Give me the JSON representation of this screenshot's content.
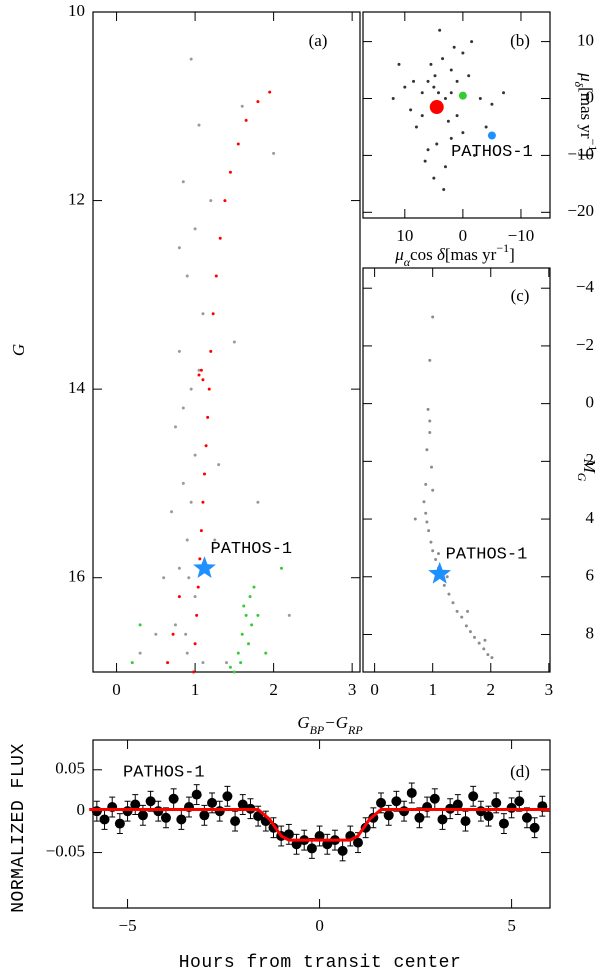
{
  "chart_data": [
    {
      "type": "scatter",
      "panel_label": "(a)",
      "annotation": "PATHOS-1",
      "xlabel": [
        "G",
        "BP",
        "−G",
        "RP"
      ],
      "xlabel_style": [
        "italic",
        "sub",
        "italic",
        "sub"
      ],
      "ylabel": [
        "G"
      ],
      "ylabel_style": [
        "italic"
      ],
      "yaxis": "left",
      "xlim": [
        -0.3,
        3.1
      ],
      "ylim": [
        17,
        10
      ],
      "xticks": [
        0,
        1,
        2,
        3
      ],
      "yticks": [
        10,
        12,
        14,
        16
      ],
      "series": [
        {
          "color": "#9a9a9a",
          "marker": "point",
          "x": [
            0.95,
            1.05,
            0.85,
            1.0,
            0.9,
            1.1,
            0.8,
            0.95,
            0.75,
            1.0,
            0.85,
            0.7,
            0.9,
            0.8,
            1.0,
            0.75,
            0.9,
            1.2,
            1.5,
            1.3,
            2.0,
            1.8,
            0.6,
            0.5,
            1.4,
            2.2,
            0.3,
            1.6,
            0.95,
            0.85,
            1.05,
            0.92,
            0.88,
            1.1,
            0.8,
            1.25
          ],
          "values": [
            10.5,
            11.2,
            11.8,
            12.3,
            12.8,
            13.2,
            13.6,
            14.0,
            14.4,
            14.7,
            15.0,
            15.3,
            15.6,
            15.9,
            16.2,
            16.5,
            16.8,
            12.0,
            13.5,
            14.8,
            11.5,
            15.2,
            16.0,
            16.6,
            16.9,
            16.4,
            16.8,
            11.0,
            15.2,
            14.2,
            13.8,
            16.0,
            16.6,
            16.9,
            12.5,
            15.6
          ]
        },
        {
          "color": "#ff0000",
          "marker": "point",
          "x": [
            0.98,
            1.0,
            1.02,
            1.04,
            1.06,
            1.08,
            1.1,
            1.12,
            1.14,
            1.16,
            1.18,
            1.2,
            1.23,
            1.27,
            1.32,
            1.38,
            1.45,
            1.55,
            1.65,
            1.8,
            1.95,
            1.05,
            1.08,
            1.1,
            0.72,
            0.8,
            0.65
          ],
          "values": [
            17.0,
            16.7,
            16.4,
            16.1,
            15.8,
            15.5,
            15.2,
            14.9,
            14.6,
            14.3,
            14.0,
            13.6,
            13.2,
            12.8,
            12.4,
            12.0,
            11.7,
            11.4,
            11.15,
            10.95,
            10.85,
            13.85,
            13.8,
            13.9,
            16.6,
            16.2,
            16.9
          ]
        },
        {
          "color": "#33cc33",
          "marker": "point",
          "x": [
            1.5,
            1.55,
            1.6,
            1.65,
            1.7,
            1.75,
            1.58,
            1.68,
            1.72,
            1.62,
            1.45,
            1.8,
            0.3,
            0.2,
            2.1,
            1.9
          ],
          "values": [
            17.0,
            16.8,
            16.6,
            16.4,
            16.2,
            16.1,
            16.9,
            16.7,
            16.5,
            16.3,
            16.95,
            16.4,
            16.5,
            16.9,
            15.9,
            16.8
          ]
        },
        {
          "color": "#1e90ff",
          "marker": "star",
          "x": [
            1.12
          ],
          "values": [
            15.9
          ]
        }
      ]
    },
    {
      "type": "scatter",
      "panel_label": "(b)",
      "annotation": "PATHOS-1",
      "xlabel": [
        "μ",
        "α",
        "cos ",
        "δ",
        "[mas yr",
        "−1",
        "]"
      ],
      "xlabel_style": [
        "italic",
        "sub",
        "normal",
        "italic",
        "normal",
        "sup",
        "normal"
      ],
      "ylabel": [
        "μ",
        "δ",
        "[mas yr",
        "−1",
        "]"
      ],
      "ylabel_style": [
        "italic",
        "sub",
        "normal",
        "sup",
        "normal"
      ],
      "yaxis": "right",
      "xlim": [
        17.2,
        -15
      ],
      "ylim": [
        -21,
        15.2
      ],
      "xticks": [
        10,
        0,
        {
          "value": -10,
          "label": "−10"
        }
      ],
      "yticks": [
        10,
        0,
        {
          "value": -10,
          "label": "−10"
        },
        {
          "value": -20,
          "label": "−20"
        }
      ],
      "series": [
        {
          "color": "#333333",
          "marker": "point",
          "x": [
            3,
            5,
            1,
            7,
            -1,
            4,
            2,
            8,
            -3,
            6,
            0,
            10,
            -5,
            3.5,
            4.5,
            2.5,
            5.5,
            1.5,
            9,
            -2,
            12,
            -7,
            3,
            6,
            0,
            4,
            2,
            7,
            -4,
            11,
            5,
            1,
            3.8,
            4.2,
            2,
            6.5,
            -1.5,
            8.5,
            3.3,
            4.8
          ],
          "values": [
            0,
            2,
            -3,
            1,
            4,
            -2,
            5,
            -5,
            0,
            3,
            -6,
            2,
            -1,
            7,
            -8,
            -4,
            6,
            9,
            -2,
            -10,
            0,
            1,
            -12,
            -9,
            8,
            12,
            1,
            -3,
            -5,
            6,
            -14,
            3,
            -2,
            1,
            -7,
            -11,
            10,
            3,
            -16,
            4
          ]
        },
        {
          "color": "#ff0000",
          "marker": "dot",
          "x": [
            4.5
          ],
          "values": [
            -1.5
          ]
        },
        {
          "color": "#33cc33",
          "marker": "smalldot",
          "x": [
            0
          ],
          "values": [
            0.5
          ]
        },
        {
          "color": "#1e90ff",
          "marker": "smalldot",
          "x": [
            -5
          ],
          "values": [
            -6.5
          ]
        }
      ]
    },
    {
      "type": "scatter",
      "panel_label": "(c)",
      "annotation": "PATHOS-1",
      "ylabel": [
        "M",
        "G"
      ],
      "ylabel_style": [
        "italic",
        "sub"
      ],
      "yaxis": "right",
      "xlim": [
        -0.2,
        3.02
      ],
      "ylim": [
        9.3,
        -4.7
      ],
      "xticks": [
        0,
        1,
        2,
        3
      ],
      "yticks": [
        {
          "value": -4,
          "label": "−4"
        },
        {
          "value": -2,
          "label": "−2"
        },
        0,
        2,
        4,
        6,
        8
      ],
      "series": [
        {
          "color": "#8c8c8c",
          "marker": "point",
          "x": [
            0.85,
            0.88,
            0.9,
            0.93,
            0.97,
            1.0,
            1.05,
            1.1,
            1.15,
            1.2,
            1.28,
            1.35,
            1.42,
            1.5,
            1.58,
            1.65,
            1.72,
            1.8,
            1.88,
            1.95,
            2.02,
            0.92,
            0.95,
            0.9,
            0.98,
            0.95,
            1.0,
            0.88,
            1.1,
            1.25,
            1.6,
            1.9,
            0.7,
            0.95,
            1.0
          ],
          "values": [
            3.4,
            3.8,
            4.1,
            4.4,
            4.8,
            5.1,
            5.4,
            5.7,
            6.0,
            6.3,
            6.6,
            6.9,
            7.2,
            7.4,
            7.7,
            7.9,
            8.1,
            8.3,
            8.5,
            8.7,
            8.8,
            0.2,
            1.0,
            1.6,
            2.2,
            -1.5,
            -3,
            2.8,
            5.2,
            6.0,
            7.2,
            8.2,
            4.0,
            0.6,
            3.0
          ]
        },
        {
          "color": "#1e90ff",
          "marker": "star",
          "x": [
            1.12
          ],
          "values": [
            5.9
          ]
        }
      ]
    },
    {
      "type": "scatter",
      "panel_label": "(d)",
      "annotation": "PATHOS-1",
      "xlabel": [
        "Hours from transit center"
      ],
      "xlabel_style": [
        "mono"
      ],
      "ylabel": [
        "NORMALIZED FLUX"
      ],
      "ylabel_style": [
        "mono"
      ],
      "yaxis": "left",
      "xlim": [
        -5.9,
        6.0
      ],
      "ylim": [
        -0.117,
        0.086
      ],
      "xticks": [
        {
          "value": -5,
          "label": "−5"
        },
        0,
        5
      ],
      "yticks": [
        0.05,
        0,
        {
          "value": -0.05,
          "label": "−0.05"
        }
      ],
      "error": 0.012,
      "series": [
        {
          "color": "#000000",
          "marker": "dot",
          "x": [
            -5.8,
            -5.6,
            -5.4,
            -5.2,
            -5.0,
            -4.8,
            -4.6,
            -4.4,
            -4.2,
            -4.0,
            -3.8,
            -3.6,
            -3.4,
            -3.2,
            -3.0,
            -2.8,
            -2.6,
            -2.4,
            -2.2,
            -2.0,
            -1.8,
            -1.6,
            -1.4,
            -1.2,
            -1.0,
            -0.8,
            -0.6,
            -0.4,
            -0.2,
            0,
            0.2,
            0.4,
            0.6,
            0.8,
            1.0,
            1.2,
            1.4,
            1.6,
            1.8,
            2.0,
            2.2,
            2.4,
            2.6,
            2.8,
            3.0,
            3.2,
            3.4,
            3.6,
            3.8,
            4.0,
            4.2,
            4.4,
            4.6,
            4.8,
            5.0,
            5.2,
            5.4,
            5.6,
            5.8
          ],
          "values": [
            0.0,
            -0.01,
            0.005,
            -0.015,
            0.0,
            0.008,
            -0.005,
            0.012,
            0.0,
            -0.008,
            0.015,
            -0.01,
            0.005,
            0.02,
            -0.005,
            0.01,
            0.0,
            0.018,
            -0.012,
            0.008,
            0.003,
            -0.006,
            -0.012,
            -0.02,
            -0.03,
            -0.028,
            -0.04,
            -0.035,
            -0.045,
            -0.03,
            -0.04,
            -0.035,
            -0.048,
            -0.03,
            -0.038,
            -0.02,
            -0.008,
            0.01,
            -0.005,
            0.012,
            0.0,
            0.022,
            -0.008,
            0.005,
            0.015,
            -0.01,
            0.003,
            0.008,
            -0.012,
            0.018,
            0.0,
            -0.006,
            0.01,
            -0.015,
            0.004,
            0.012,
            -0.008,
            -0.02,
            0.006
          ]
        }
      ],
      "model": {
        "color": "#ff0000",
        "x": [
          -6.0,
          -1.6,
          -1.3,
          -1.0,
          -0.8,
          0.8,
          1.0,
          1.3,
          1.6,
          6.0
        ],
        "values": [
          0.002,
          0.002,
          -0.01,
          -0.03,
          -0.035,
          -0.035,
          -0.03,
          -0.01,
          0.002,
          0.002
        ]
      }
    }
  ]
}
